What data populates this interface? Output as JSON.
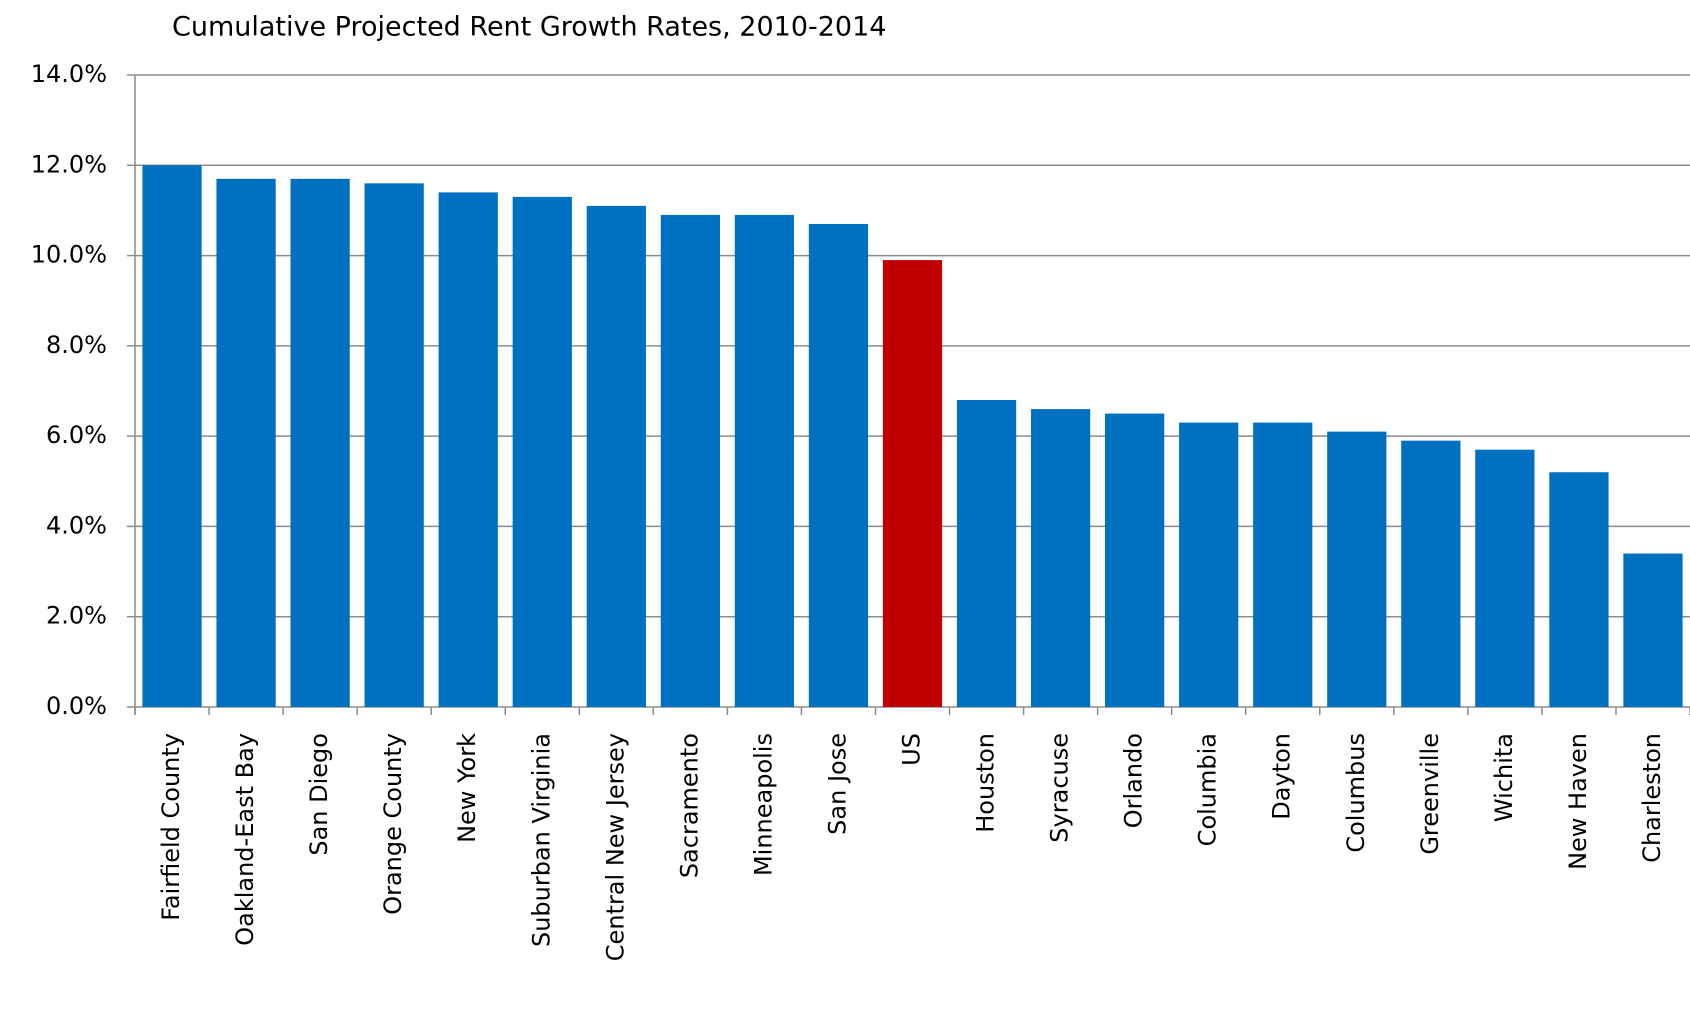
{
  "chart_data": {
    "type": "bar",
    "title": "Cumulative Projected Rent Growth Rates, 2010-2014",
    "categories": [
      "Fairfield County",
      "Oakland-East Bay",
      "San Diego",
      "Orange County",
      "New York",
      "Suburban Virginia",
      "Central New Jersey",
      "Sacramento",
      "Minneapolis",
      "San Jose",
      "US",
      "Houston",
      "Syracuse",
      "Orlando",
      "Columbia",
      "Dayton",
      "Columbus",
      "Greenville",
      "Wichita",
      "New Haven",
      "Charleston"
    ],
    "values": [
      12.0,
      11.7,
      11.7,
      11.6,
      11.4,
      11.3,
      11.1,
      10.9,
      10.9,
      10.7,
      9.9,
      6.8,
      6.6,
      6.5,
      6.3,
      6.3,
      6.1,
      5.9,
      5.7,
      5.2,
      3.4
    ],
    "colors": [
      "#0070c0",
      "#0070c0",
      "#0070c0",
      "#0070c0",
      "#0070c0",
      "#0070c0",
      "#0070c0",
      "#0070c0",
      "#0070c0",
      "#0070c0",
      "#c00000",
      "#0070c0",
      "#0070c0",
      "#0070c0",
      "#0070c0",
      "#0070c0",
      "#0070c0",
      "#0070c0",
      "#0070c0",
      "#0070c0",
      "#0070c0"
    ],
    "ylim": [
      0,
      14
    ],
    "yticks": [
      {
        "value": 0,
        "label": "0.0%"
      },
      {
        "value": 2,
        "label": "2.0%"
      },
      {
        "value": 4,
        "label": "4.0%"
      },
      {
        "value": 6,
        "label": "6.0%"
      },
      {
        "value": 8,
        "label": "8.0%"
      },
      {
        "value": 10,
        "label": "10.0%"
      },
      {
        "value": 12,
        "label": "12.0%"
      },
      {
        "value": 14,
        "label": "14.0%"
      }
    ],
    "grid": true
  }
}
